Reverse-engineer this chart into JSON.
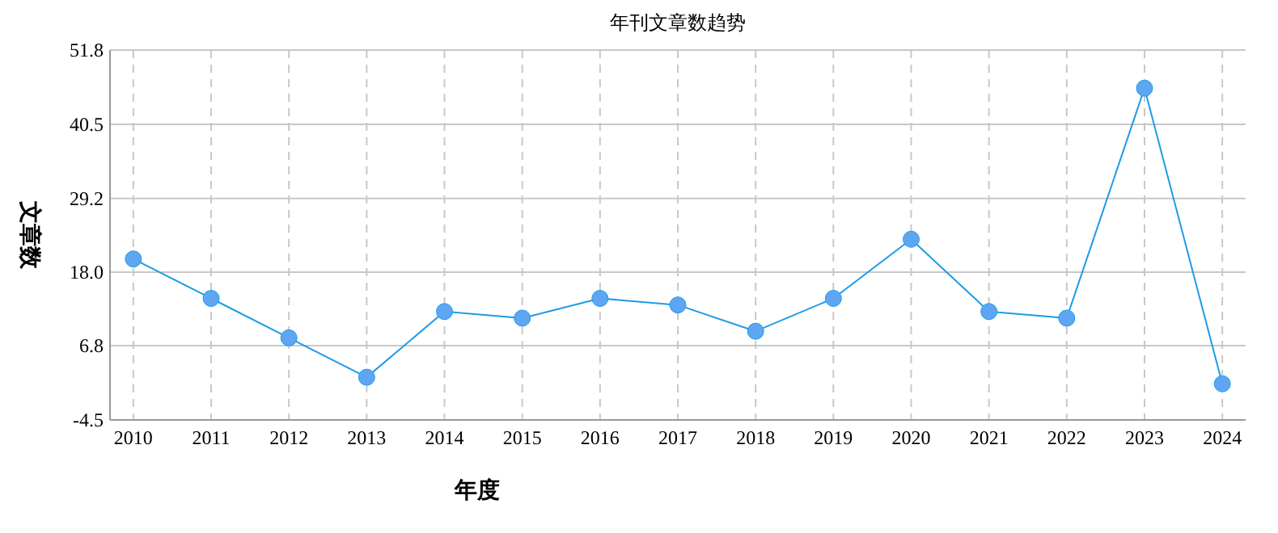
{
  "chart_data": {
    "type": "line",
    "title": "年刊文章数趋势",
    "xlabel": "年度",
    "ylabel": "文章数",
    "categories": [
      "2010",
      "2011",
      "2012",
      "2013",
      "2014",
      "2015",
      "2016",
      "2017",
      "2018",
      "2019",
      "2020",
      "2021",
      "2022",
      "2023",
      "2024"
    ],
    "series": [
      {
        "color": "#1e9be6",
        "values": [
          20,
          14,
          8,
          2,
          12,
          11,
          14,
          13,
          9,
          14,
          23,
          12,
          11,
          46,
          1
        ]
      }
    ],
    "ylim": [
      -4.5,
      51.8
    ],
    "yticks": [
      -4.5,
      6.8,
      {
        "value": 18,
        "label": "18.0"
      },
      29.2,
      40.5,
      51.8
    ],
    "grid": true,
    "marker": "circle",
    "line_style": "solid"
  }
}
